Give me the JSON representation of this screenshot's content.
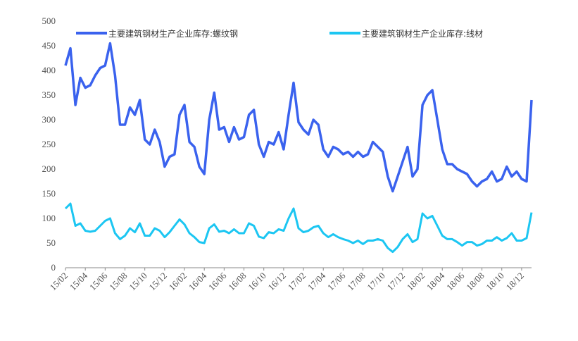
{
  "chart_data": {
    "type": "line",
    "categories": [
      "15/02",
      null,
      null,
      null,
      "15/04",
      null,
      null,
      null,
      "15/06",
      null,
      null,
      null,
      "15/08",
      null,
      null,
      null,
      "15/10",
      null,
      null,
      null,
      "15/12",
      null,
      null,
      null,
      "16/02",
      null,
      null,
      null,
      "16/04",
      null,
      null,
      null,
      "16/06",
      null,
      null,
      null,
      "16/08",
      null,
      null,
      null,
      "16/10",
      null,
      null,
      null,
      "16/12",
      null,
      null,
      null,
      "17/02",
      null,
      null,
      null,
      "17/04",
      null,
      null,
      null,
      "17/06",
      null,
      null,
      null,
      "17/08",
      null,
      null,
      null,
      "17/10",
      null,
      null,
      null,
      "17/12",
      null,
      null,
      null,
      "18/02",
      null,
      null,
      null,
      "18/04",
      null,
      null,
      null,
      "18/06",
      null,
      null,
      null,
      "18/08",
      null,
      null,
      null,
      "18/10",
      null,
      null,
      null,
      "18/12",
      null,
      null
    ],
    "series": [
      {
        "name": "主要建筑钢材生产企业库存:螺纹钢",
        "color": "#3a62ee",
        "values": [
          410,
          445,
          330,
          385,
          365,
          370,
          390,
          405,
          410,
          455,
          390,
          290,
          290,
          325,
          310,
          340,
          260,
          250,
          280,
          255,
          205,
          225,
          230,
          310,
          330,
          255,
          245,
          205,
          190,
          300,
          355,
          280,
          285,
          255,
          285,
          260,
          265,
          310,
          320,
          250,
          225,
          255,
          250,
          275,
          240,
          310,
          375,
          295,
          280,
          270,
          300,
          290,
          240,
          225,
          245,
          240,
          230,
          235,
          225,
          235,
          225,
          230,
          255,
          245,
          235,
          185,
          155,
          185,
          215,
          245,
          185,
          200,
          330,
          350,
          360,
          300,
          240,
          210,
          210,
          200,
          195,
          190,
          175,
          165,
          175,
          180,
          195,
          175,
          180,
          205,
          185,
          195,
          180,
          175,
          340
        ]
      },
      {
        "name": "主要建筑钢材生产企业库存:线材",
        "color": "#1cc6f2",
        "values": [
          120,
          130,
          85,
          90,
          75,
          73,
          75,
          85,
          95,
          100,
          70,
          58,
          65,
          80,
          72,
          90,
          65,
          65,
          80,
          75,
          62,
          72,
          85,
          98,
          88,
          70,
          62,
          52,
          50,
          80,
          88,
          73,
          75,
          70,
          78,
          70,
          70,
          90,
          85,
          63,
          60,
          72,
          70,
          78,
          75,
          100,
          120,
          80,
          72,
          75,
          82,
          85,
          70,
          62,
          68,
          62,
          58,
          55,
          50,
          55,
          48,
          55,
          55,
          58,
          55,
          40,
          32,
          42,
          58,
          68,
          52,
          58,
          110,
          100,
          105,
          85,
          65,
          58,
          58,
          52,
          45,
          52,
          52,
          45,
          48,
          55,
          55,
          62,
          55,
          60,
          70,
          55,
          55,
          60,
          112
        ]
      }
    ],
    "ylim": [
      0,
      500
    ],
    "yticks": [
      0,
      50,
      100,
      150,
      200,
      250,
      300,
      350,
      400,
      450,
      500
    ]
  }
}
